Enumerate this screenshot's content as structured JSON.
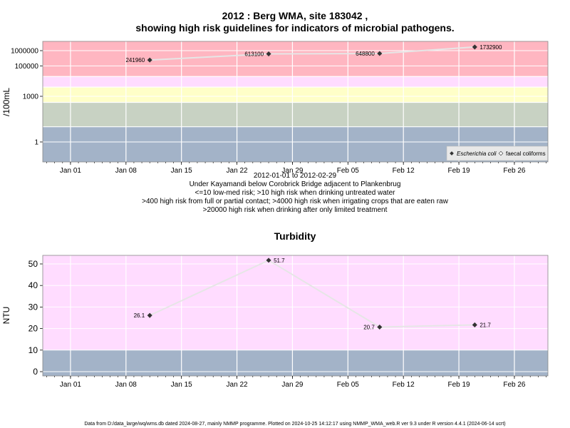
{
  "title_line1": "2012 : Berg WMA, site 183042 ,",
  "title_line2": "showing high risk guidelines for indicators of microbial pathogens.",
  "notes": [
    "2012-01-01 to 2012-02-29",
    "Under Kayamandi below Corobrick Bridge adjacent to Plankenbrug",
    "<=10 low-med risk; >10 high risk when drinking untreated water",
    ">400 high risk from full or partial contact; >4000 high risk when irrigating crops that are eaten raw",
    ">20000 high risk when drinking after only limited treatment"
  ],
  "footer": "Data from D:/data_large/wq/wms.db dated 2024-08-27, mainly NMMP programme. Plotted on 2024-10-25 14:12:17 using NMMP_WMA_web.R ver 9.3 under R version 4.4.1 (2024-06-14 ucrt)",
  "colors": {
    "red_band": "#ffb6c1",
    "pink_band": "#ffdcff",
    "yellow_band": "#ffffc8",
    "green_band": "#c8d2c3",
    "blue_band": "#a3b3c8",
    "line": "#e6e6e6",
    "marker": "#333333"
  },
  "chart_data": [
    {
      "type": "line",
      "title": "",
      "xlabel": "",
      "ylabel": "/100mL",
      "y_scale": "log",
      "x_ticks": [
        "Jan 01",
        "Jan 08",
        "Jan 15",
        "Jan 22",
        "Jan 29",
        "Feb 05",
        "Feb 12",
        "Feb 19",
        "Feb 26"
      ],
      "y_ticks": [
        "1000000",
        "100000",
        "1000",
        "1"
      ],
      "legend": [
        "Escherichia coli",
        "faecal coliforms"
      ],
      "legend_position": "bottom-right",
      "grid": true,
      "series": [
        {
          "name": "Escherichia coli",
          "x": [
            "2012-01-11",
            "2012-01-26",
            "2012-02-09",
            "2012-02-21"
          ],
          "values": [
            241960,
            613100,
            648800,
            1732900
          ],
          "labels": [
            "241960",
            "613100",
            "648800",
            "1732900"
          ]
        }
      ]
    },
    {
      "type": "line",
      "title": "Turbidity",
      "xlabel": "",
      "ylabel": "NTU",
      "x_ticks": [
        "Jan 01",
        "Jan 08",
        "Jan 15",
        "Jan 22",
        "Jan 29",
        "Feb 05",
        "Feb 12",
        "Feb 19",
        "Feb 26"
      ],
      "y_ticks": [
        "0",
        "10",
        "20",
        "30",
        "40",
        "50"
      ],
      "ylim": [
        -1.5,
        54
      ],
      "grid": true,
      "series": [
        {
          "x": [
            "2012-01-11",
            "2012-01-26",
            "2012-02-09",
            "2012-02-21"
          ],
          "values": [
            26.1,
            51.7,
            20.7,
            21.7
          ],
          "labels": [
            "26.1",
            "51.7",
            "20.7",
            "21.7"
          ]
        }
      ]
    }
  ]
}
